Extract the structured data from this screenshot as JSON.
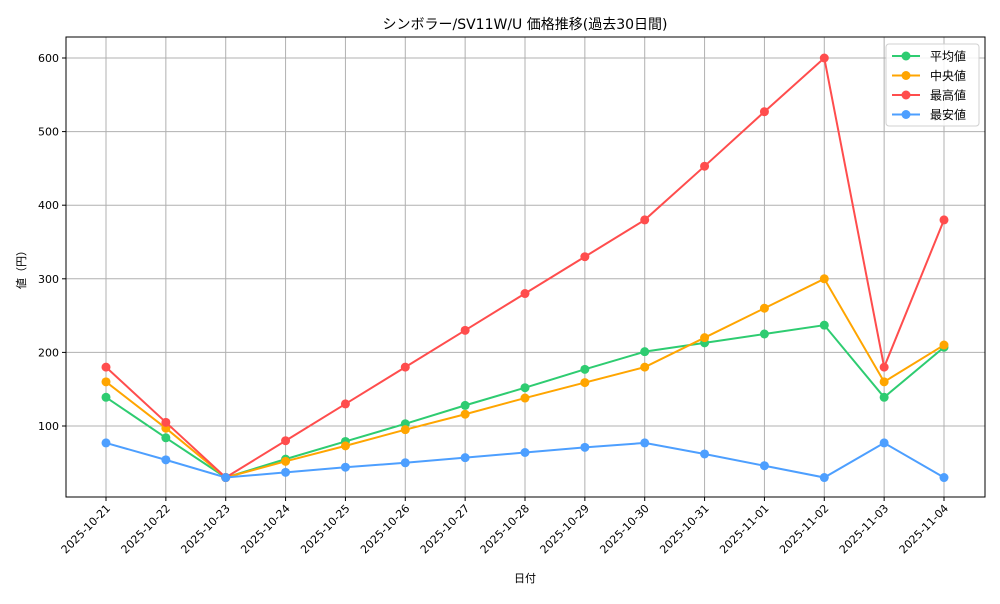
{
  "chart_data": {
    "type": "line",
    "title": "シンボラー/SV11W/U 価格推移(過去30日間)",
    "xlabel": "日付",
    "ylabel": "値（円）",
    "ylim": [
      10,
      630
    ],
    "yticks": [
      100,
      200,
      300,
      400,
      500,
      600
    ],
    "grid": true,
    "legend_position": "upper right",
    "categories": [
      "2025-10-21",
      "2025-10-22",
      "2025-10-23",
      "2025-10-24",
      "2025-10-25",
      "2025-10-26",
      "2025-10-27",
      "2025-10-28",
      "2025-10-29",
      "2025-10-30",
      "2025-10-31",
      "2025-11-01",
      "2025-11-02",
      "2025-11-03",
      "2025-11-04"
    ],
    "series": [
      {
        "name": "平均値",
        "color": "#2ecc71",
        "values": [
          139,
          84,
          30,
          55,
          79,
          103,
          128,
          152,
          177,
          201,
          213,
          225,
          237,
          139,
          207
        ]
      },
      {
        "name": "中央値",
        "color": "#ffa500",
        "values": [
          160,
          97,
          30,
          52,
          73,
          95,
          116,
          138,
          159,
          180,
          220,
          260,
          300,
          160,
          210
        ]
      },
      {
        "name": "最高値",
        "color": "#ff4d4d",
        "values": [
          180,
          105,
          30,
          80,
          130,
          180,
          230,
          280,
          330,
          380,
          453,
          527,
          600,
          180,
          380
        ]
      },
      {
        "name": "最安値",
        "color": "#4d9fff",
        "values": [
          77,
          54,
          30,
          37,
          44,
          50,
          57,
          64,
          71,
          77,
          62,
          46,
          30,
          77,
          30
        ]
      }
    ]
  }
}
